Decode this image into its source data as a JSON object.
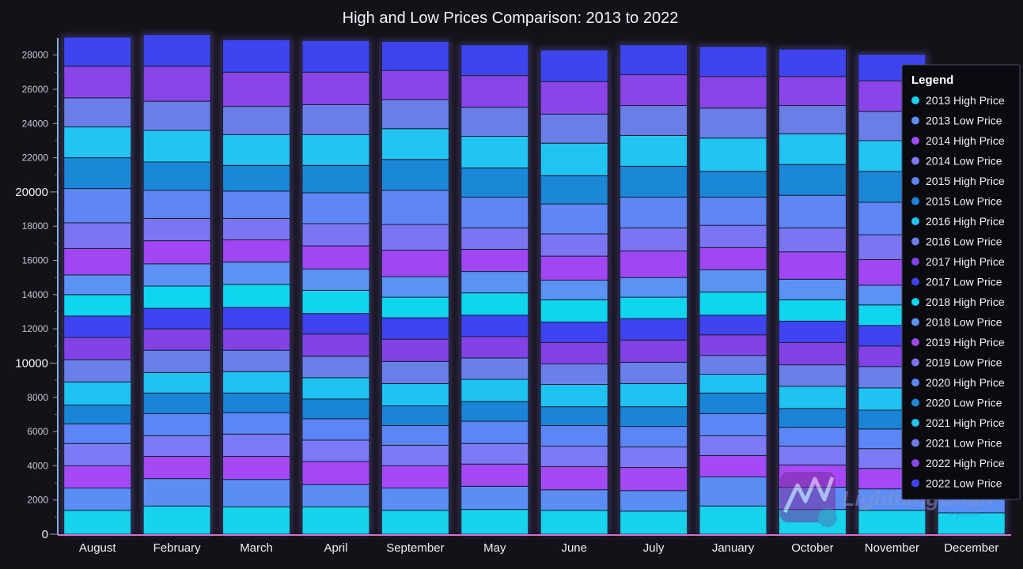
{
  "chart_data": {
    "type": "bar",
    "stacked": true,
    "title": "High and Low Prices Comparison: 2013 to 2022",
    "categories": [
      "August",
      "February",
      "March",
      "April",
      "September",
      "May",
      "June",
      "July",
      "January",
      "October",
      "November",
      "December"
    ],
    "y_ticks_major": [
      "0",
      "10000",
      "20000"
    ],
    "y_ticks_minor": [
      "2000",
      "4000",
      "6000",
      "8000",
      "12000",
      "14000",
      "16000",
      "18000",
      "22000",
      "24000",
      "26000",
      "28000"
    ],
    "ylim": [
      0,
      29000
    ],
    "grid": false,
    "legend_position": "right",
    "legend_title": "Legend",
    "series": [
      {
        "name": "2013 High Price",
        "color": "#17d3ec",
        "values": [
          1400,
          1650,
          1600,
          1600,
          1400,
          1450,
          1400,
          1350,
          1650,
          1450,
          1400,
          1250
        ]
      },
      {
        "name": "2013 Low Price",
        "color": "#5b8ef5",
        "values": [
          1300,
          1600,
          1600,
          1300,
          1300,
          1350,
          1200,
          1200,
          1700,
          1300,
          1250,
          1300
        ]
      },
      {
        "name": "2014 High Price",
        "color": "#a449f5",
        "values": [
          1300,
          1300,
          1350,
          1350,
          1300,
          1300,
          1350,
          1350,
          1250,
          1300,
          1200,
          1200
        ]
      },
      {
        "name": "2014 Low Price",
        "color": "#7d7af5",
        "values": [
          1300,
          1200,
          1300,
          1250,
          1200,
          1200,
          1200,
          1200,
          1150,
          1100,
          1150,
          1100
        ]
      },
      {
        "name": "2015 High Price",
        "color": "#5c85f5",
        "values": [
          1150,
          1300,
          1250,
          1250,
          1150,
          1300,
          1200,
          1200,
          1300,
          1100,
          1150,
          1100
        ]
      },
      {
        "name": "2015 Low Price",
        "color": "#1a84d6",
        "values": [
          1100,
          1200,
          1150,
          1150,
          1150,
          1150,
          1100,
          1150,
          1200,
          1100,
          1100,
          1000
        ]
      },
      {
        "name": "2016 High Price",
        "color": "#1fc3f2",
        "values": [
          1350,
          1200,
          1250,
          1250,
          1300,
          1300,
          1300,
          1350,
          1100,
          1300,
          1300,
          1200
        ]
      },
      {
        "name": "2016 Low Price",
        "color": "#6a7fe8",
        "values": [
          1300,
          1300,
          1250,
          1250,
          1300,
          1250,
          1200,
          1250,
          1100,
          1250,
          1250,
          1200
        ]
      },
      {
        "name": "2017 High Price",
        "color": "#8342e6",
        "values": [
          1300,
          1250,
          1250,
          1300,
          1300,
          1250,
          1250,
          1300,
          1200,
          1300,
          1200,
          1200
        ]
      },
      {
        "name": "2017 Low Price",
        "color": "#4044f0",
        "values": [
          1250,
          1200,
          1250,
          1200,
          1250,
          1250,
          1200,
          1250,
          1150,
          1250,
          1200,
          1100
        ]
      },
      {
        "name": "2018 High Price",
        "color": "#0fd6ee",
        "values": [
          1250,
          1300,
          1350,
          1350,
          1200,
          1300,
          1300,
          1250,
          1350,
          1250,
          1200,
          1150
        ]
      },
      {
        "name": "2018 Low Price",
        "color": "#5d92f5",
        "values": [
          1150,
          1300,
          1300,
          1250,
          1200,
          1250,
          1150,
          1150,
          1300,
          1200,
          1150,
          1100
        ]
      },
      {
        "name": "2019 High Price",
        "color": "#a046f2",
        "values": [
          1550,
          1350,
          1300,
          1350,
          1550,
          1300,
          1400,
          1550,
          1300,
          1600,
          1500,
          1400
        ]
      },
      {
        "name": "2019 Low Price",
        "color": "#7b75f2",
        "values": [
          1500,
          1300,
          1250,
          1300,
          1500,
          1250,
          1300,
          1350,
          1300,
          1400,
          1450,
          1350
        ]
      },
      {
        "name": "2020 High Price",
        "color": "#5e86f5",
        "values": [
          2000,
          1650,
          1600,
          1800,
          2000,
          1800,
          1750,
          1800,
          1650,
          1900,
          1900,
          1800
        ]
      },
      {
        "name": "2020 Low Price",
        "color": "#1a88d6",
        "values": [
          1800,
          1650,
          1500,
          1600,
          1800,
          1700,
          1650,
          1800,
          1500,
          1800,
          1800,
          1700
        ]
      },
      {
        "name": "2021 High Price",
        "color": "#22c5f2",
        "values": [
          1800,
          1850,
          1800,
          1800,
          1800,
          1850,
          1900,
          1800,
          1950,
          1800,
          1800,
          1800
        ]
      },
      {
        "name": "2021 Low Price",
        "color": "#6b7de6",
        "values": [
          1700,
          1700,
          1650,
          1750,
          1700,
          1700,
          1700,
          1750,
          1750,
          1650,
          1700,
          1700
        ]
      },
      {
        "name": "2022 High Price",
        "color": "#8b44e8",
        "values": [
          1850,
          2050,
          2000,
          1900,
          1700,
          1850,
          1900,
          1800,
          1850,
          1700,
          1800,
          1800
        ]
      },
      {
        "name": "2022 Low Price",
        "color": "#3f45ee",
        "values": [
          1700,
          1850,
          1900,
          1850,
          1700,
          1800,
          1850,
          1750,
          1750,
          1600,
          1550,
          1650
        ]
      }
    ]
  },
  "watermark": {
    "text": "LightningChart",
    "registered": "®",
    "subtext": "Python"
  }
}
